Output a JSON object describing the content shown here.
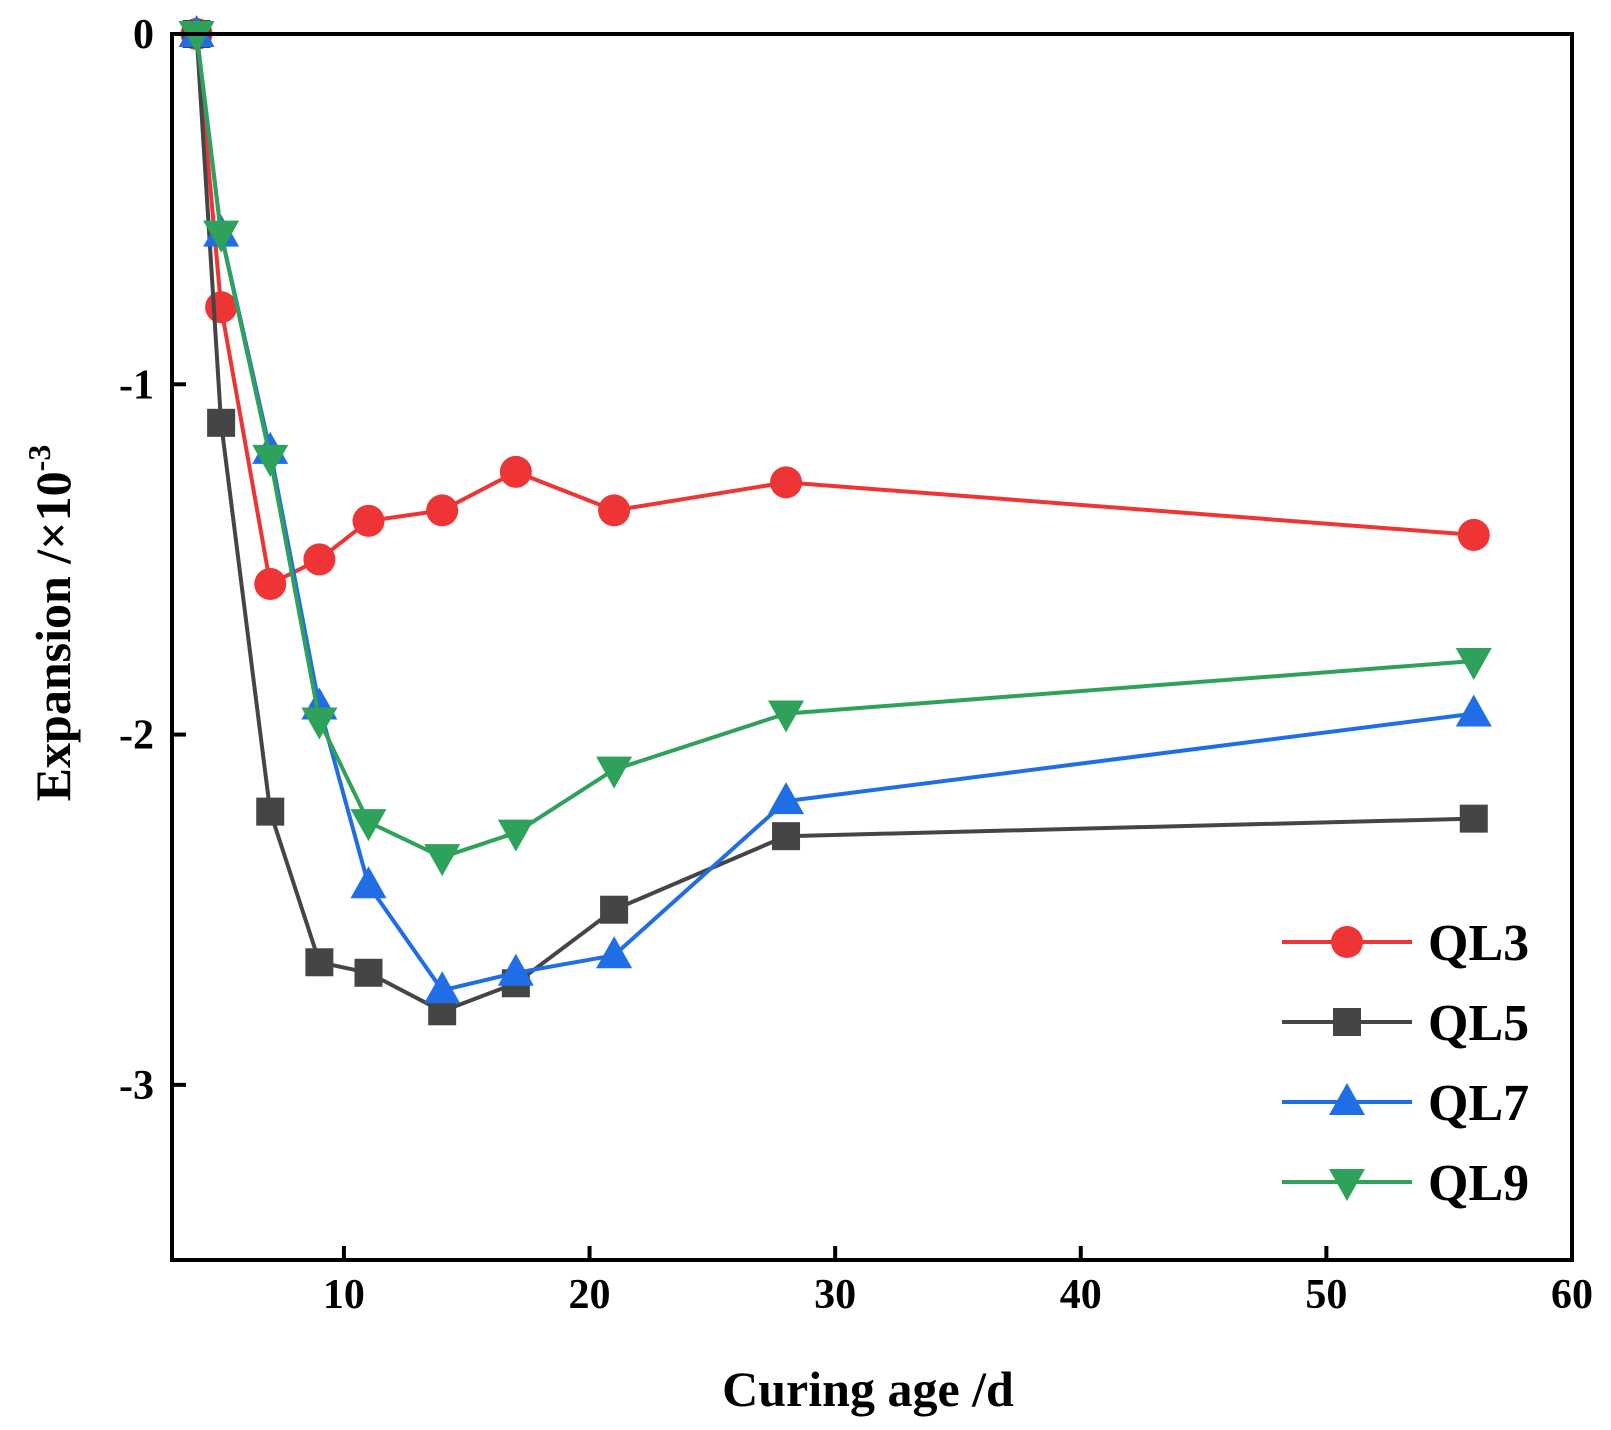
{
  "chart_data": {
    "type": "line",
    "title": "",
    "xlabel": "Curing age /d",
    "ylabel_main": "Expansion /×10",
    "ylabel_sup": "-3",
    "xlim": [
      3,
      60
    ],
    "ylim": [
      -3.5,
      0
    ],
    "xticks": [
      10,
      20,
      30,
      40,
      50,
      60
    ],
    "yticks": [
      0,
      -1,
      -2,
      -3
    ],
    "xtick_labels": [
      "10",
      "20",
      "30",
      "40",
      "50",
      "60"
    ],
    "ytick_labels": [
      "0",
      "-1",
      "-2",
      "-3"
    ],
    "grid": false,
    "legend_position": "bottom-right",
    "series": [
      {
        "name": "QL3",
        "color": "#ee3434",
        "marker": "circle",
        "x": [
          4,
          5,
          7,
          9,
          11,
          14,
          17,
          21,
          28,
          56
        ],
        "y": [
          0,
          -0.78,
          -1.57,
          -1.5,
          -1.39,
          -1.36,
          -1.25,
          -1.36,
          -1.28,
          -1.43
        ]
      },
      {
        "name": "QL5",
        "color": "#454545",
        "marker": "square",
        "x": [
          4,
          5,
          7,
          9,
          11,
          14,
          17,
          21,
          28,
          56
        ],
        "y": [
          0,
          -1.11,
          -2.22,
          -2.65,
          -2.68,
          -2.79,
          -2.71,
          -2.5,
          -2.29,
          -2.24
        ]
      },
      {
        "name": "QL7",
        "color": "#1f6ee6",
        "marker": "triangle-up",
        "x": [
          4,
          5,
          7,
          9,
          11,
          14,
          17,
          21,
          28,
          56
        ],
        "y": [
          0,
          -0.57,
          -1.19,
          -1.92,
          -2.43,
          -2.73,
          -2.68,
          -2.63,
          -2.19,
          -1.94
        ]
      },
      {
        "name": "QL9",
        "color": "#2ea15a",
        "marker": "triangle-down",
        "x": [
          4,
          5,
          7,
          9,
          11,
          14,
          17,
          21,
          28,
          56
        ],
        "y": [
          0,
          -0.57,
          -1.21,
          -1.96,
          -2.25,
          -2.35,
          -2.28,
          -2.1,
          -1.94,
          -1.79
        ]
      }
    ]
  }
}
